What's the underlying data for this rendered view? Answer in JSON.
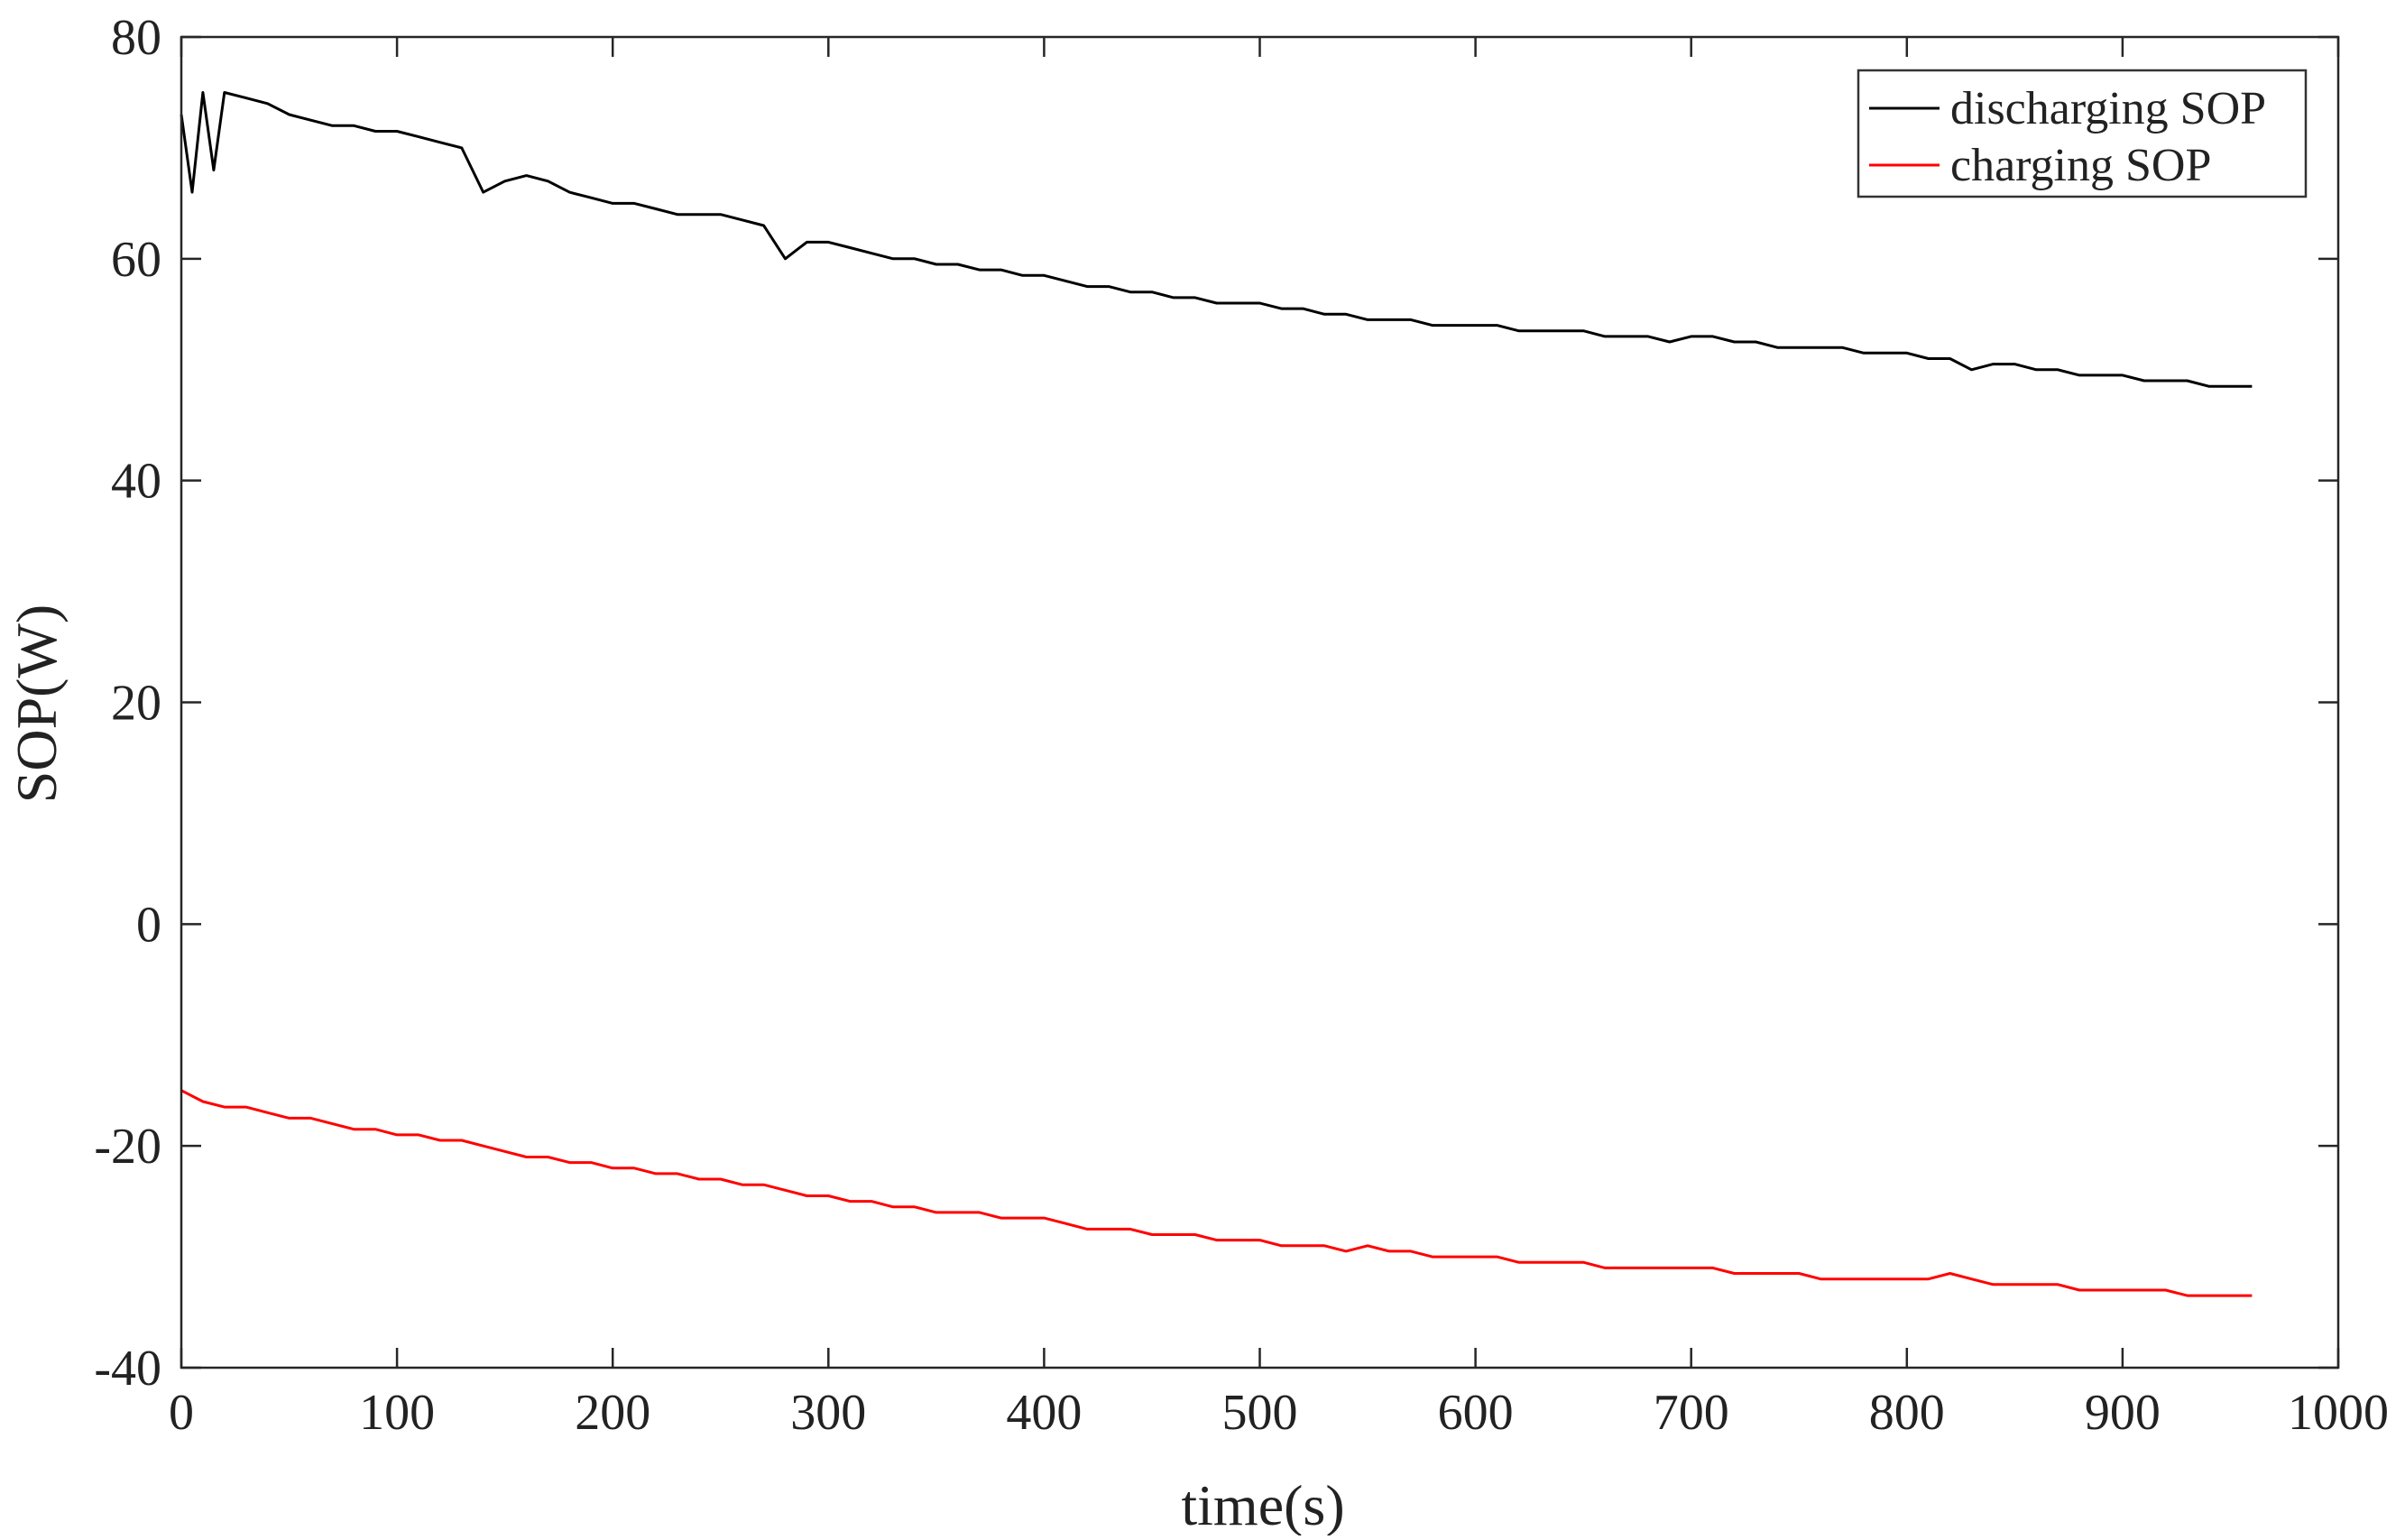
{
  "chart_data": {
    "type": "line",
    "title": "",
    "xlabel": "time(s)",
    "ylabel": "SOP(W)",
    "xlim": [
      0,
      1000
    ],
    "ylim": [
      -40,
      80
    ],
    "xticks": [
      0,
      100,
      200,
      300,
      400,
      500,
      600,
      700,
      800,
      900,
      1000
    ],
    "yticks": [
      -40,
      -20,
      0,
      20,
      40,
      60,
      80
    ],
    "xtick_labels": [
      "0",
      "100",
      "200",
      "300",
      "400",
      "500",
      "600",
      "700",
      "800",
      "900",
      "1000"
    ],
    "ytick_labels": [
      "-40",
      "-20",
      "0",
      "20",
      "40",
      "60",
      "80"
    ],
    "grid": false,
    "legend_position": "top-right",
    "series": [
      {
        "name": "discharging SOP",
        "color": "#000000",
        "x": [
          0,
          5,
          10,
          15,
          20,
          30,
          40,
          50,
          60,
          70,
          80,
          90,
          100,
          110,
          120,
          130,
          140,
          150,
          160,
          170,
          180,
          190,
          200,
          210,
          220,
          230,
          240,
          250,
          260,
          270,
          280,
          290,
          300,
          310,
          320,
          330,
          340,
          350,
          360,
          370,
          380,
          390,
          400,
          410,
          420,
          430,
          440,
          450,
          460,
          470,
          480,
          490,
          500,
          510,
          520,
          530,
          540,
          550,
          560,
          570,
          580,
          590,
          600,
          610,
          620,
          630,
          640,
          650,
          660,
          670,
          680,
          690,
          700,
          710,
          720,
          730,
          740,
          750,
          760,
          770,
          780,
          790,
          800,
          810,
          820,
          830,
          840,
          850,
          860,
          870,
          880,
          890,
          900,
          910,
          920,
          930,
          940,
          950,
          960
        ],
        "y": [
          73,
          66,
          75,
          68,
          75,
          74.5,
          74,
          73,
          72.5,
          72,
          72,
          71.5,
          71.5,
          71,
          70.5,
          70,
          66,
          67,
          67.5,
          67,
          66,
          65.5,
          65,
          65,
          64.5,
          64,
          64,
          64,
          63.5,
          63,
          60,
          61.5,
          61.5,
          61,
          60.5,
          60,
          60,
          59.5,
          59.5,
          59,
          59,
          58.5,
          58.5,
          58,
          57.5,
          57.5,
          57,
          57,
          56.5,
          56.5,
          56,
          56,
          56,
          55.5,
          55.5,
          55,
          55,
          54.5,
          54.5,
          54.5,
          54,
          54,
          54,
          54,
          53.5,
          53.5,
          53.5,
          53.5,
          53,
          53,
          53,
          52.5,
          53,
          53,
          52.5,
          52.5,
          52,
          52,
          52,
          52,
          51.5,
          51.5,
          51.5,
          51,
          51,
          50,
          50.5,
          50.5,
          50,
          50,
          49.5,
          49.5,
          49.5,
          49,
          49,
          49,
          48.5,
          48.5,
          48.5
        ]
      },
      {
        "name": "charging SOP",
        "color": "#ff0000",
        "x": [
          0,
          10,
          20,
          30,
          40,
          50,
          60,
          70,
          80,
          90,
          100,
          110,
          120,
          130,
          140,
          150,
          160,
          170,
          180,
          190,
          200,
          210,
          220,
          230,
          240,
          250,
          260,
          270,
          280,
          290,
          300,
          310,
          320,
          330,
          340,
          350,
          360,
          370,
          380,
          390,
          400,
          410,
          420,
          430,
          440,
          450,
          460,
          470,
          480,
          490,
          500,
          510,
          520,
          530,
          540,
          550,
          560,
          570,
          580,
          590,
          600,
          610,
          620,
          630,
          640,
          650,
          660,
          670,
          680,
          690,
          700,
          710,
          720,
          730,
          740,
          750,
          760,
          770,
          780,
          790,
          800,
          810,
          820,
          830,
          840,
          850,
          860,
          870,
          880,
          890,
          900,
          910,
          920,
          930,
          940,
          950,
          960
        ],
        "y": [
          -15,
          -16,
          -16.5,
          -16.5,
          -17,
          -17.5,
          -17.5,
          -18,
          -18.5,
          -18.5,
          -19,
          -19,
          -19.5,
          -19.5,
          -20,
          -20.5,
          -21,
          -21,
          -21.5,
          -21.5,
          -22,
          -22,
          -22.5,
          -22.5,
          -23,
          -23,
          -23.5,
          -23.5,
          -24,
          -24.5,
          -24.5,
          -25,
          -25,
          -25.5,
          -25.5,
          -26,
          -26,
          -26,
          -26.5,
          -26.5,
          -26.5,
          -27,
          -27.5,
          -27.5,
          -27.5,
          -28,
          -28,
          -28,
          -28.5,
          -28.5,
          -28.5,
          -29,
          -29,
          -29,
          -29.5,
          -29,
          -29.5,
          -29.5,
          -30,
          -30,
          -30,
          -30,
          -30.5,
          -30.5,
          -30.5,
          -30.5,
          -31,
          -31,
          -31,
          -31,
          -31,
          -31,
          -31.5,
          -31.5,
          -31.5,
          -31.5,
          -32,
          -32,
          -32,
          -32,
          -32,
          -32,
          -31.5,
          -32,
          -32.5,
          -32.5,
          -32.5,
          -32.5,
          -33,
          -33,
          -33,
          -33,
          -33,
          -33.5,
          -33.5,
          -33.5,
          -33.5
        ]
      }
    ]
  }
}
